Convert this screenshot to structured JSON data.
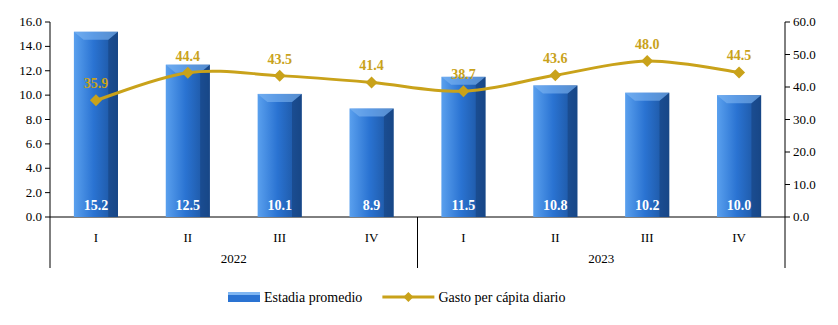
{
  "chart_data": {
    "type": "bar",
    "categories": [
      "I",
      "II",
      "III",
      "IV",
      "I",
      "II",
      "III",
      "IV"
    ],
    "x_groups": [
      {
        "label": "2022",
        "count": 4
      },
      {
        "label": "2023",
        "count": 4
      }
    ],
    "series": [
      {
        "name": "Estadia promedio",
        "type": "bar",
        "color": "#2a73d2",
        "values": [
          15.2,
          12.5,
          10.1,
          8.9,
          11.5,
          10.8,
          10.2,
          10.0
        ],
        "value_labels": [
          "15.2",
          "12.5",
          "10.1",
          "8.9",
          "11.5",
          "10.8",
          "10.2",
          "10.0"
        ]
      },
      {
        "name": "Gasto per cápita diario",
        "type": "line",
        "axis": "y2",
        "color": "#c9a21a",
        "marker": "diamond",
        "line_style": "smooth",
        "values": [
          35.9,
          44.4,
          43.5,
          41.4,
          38.7,
          43.6,
          48.0,
          44.5
        ],
        "value_labels": [
          "35.9",
          "44.4",
          "43.5",
          "41.4",
          "38.7",
          "43.6",
          "48.0",
          "44.5"
        ]
      }
    ],
    "ylim": [
      0,
      16
    ],
    "yticks": [
      {
        "value": 0,
        "label": "0.0"
      },
      {
        "value": 2,
        "label": "2.0"
      },
      {
        "value": 4,
        "label": "4.0"
      },
      {
        "value": 6,
        "label": "6.0"
      },
      {
        "value": 8,
        "label": "8.0"
      },
      {
        "value": 10,
        "label": "10.0"
      },
      {
        "value": 12,
        "label": "12.0"
      },
      {
        "value": 14,
        "label": "14.0"
      },
      {
        "value": 16,
        "label": "16.0"
      }
    ],
    "y2lim": [
      0,
      60
    ],
    "y2ticks": [
      {
        "value": 0,
        "label": "0.0"
      },
      {
        "value": 10,
        "label": "10.0"
      },
      {
        "value": 20,
        "label": "20.0"
      },
      {
        "value": 30,
        "label": "30.0"
      },
      {
        "value": 40,
        "label": "40.0"
      },
      {
        "value": 50,
        "label": "50.0"
      },
      {
        "value": 60,
        "label": "60.0"
      }
    ],
    "data_labels": true,
    "grid": false,
    "legend": "bottom"
  }
}
